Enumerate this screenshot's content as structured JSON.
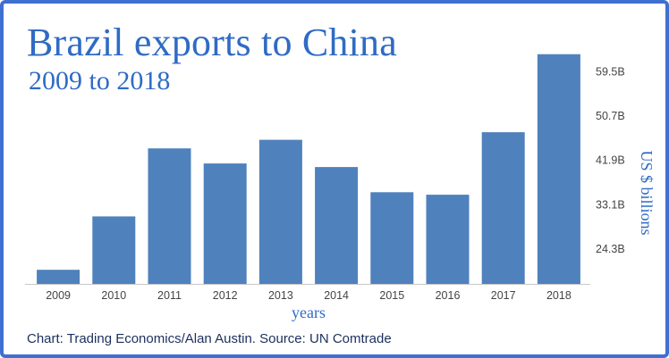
{
  "chart_data": {
    "type": "bar",
    "title": "Brazil exports to China",
    "subtitle": "2009 to 2018",
    "xlabel": "years",
    "ylabel": "US $ billions",
    "categories": [
      "2009",
      "2010",
      "2011",
      "2012",
      "2013",
      "2014",
      "2015",
      "2016",
      "2017",
      "2018"
    ],
    "values": [
      20.2,
      30.8,
      44.3,
      41.3,
      46.0,
      40.6,
      35.6,
      35.1,
      47.5,
      63.0
    ],
    "yticks": [
      24.3,
      33.1,
      41.9,
      50.7,
      59.5
    ],
    "ytick_labels": [
      "24.3B",
      "33.1B",
      "41.9B",
      "50.7B",
      "59.5B"
    ],
    "ylim": [
      17.4,
      65.6
    ],
    "ytick_position": "right",
    "grid": false,
    "bar_color": "#4f81bd",
    "title_color": "#2f6bc4",
    "source": "Chart: Trading Economics/Alan Austin. Source: UN Comtrade"
  }
}
